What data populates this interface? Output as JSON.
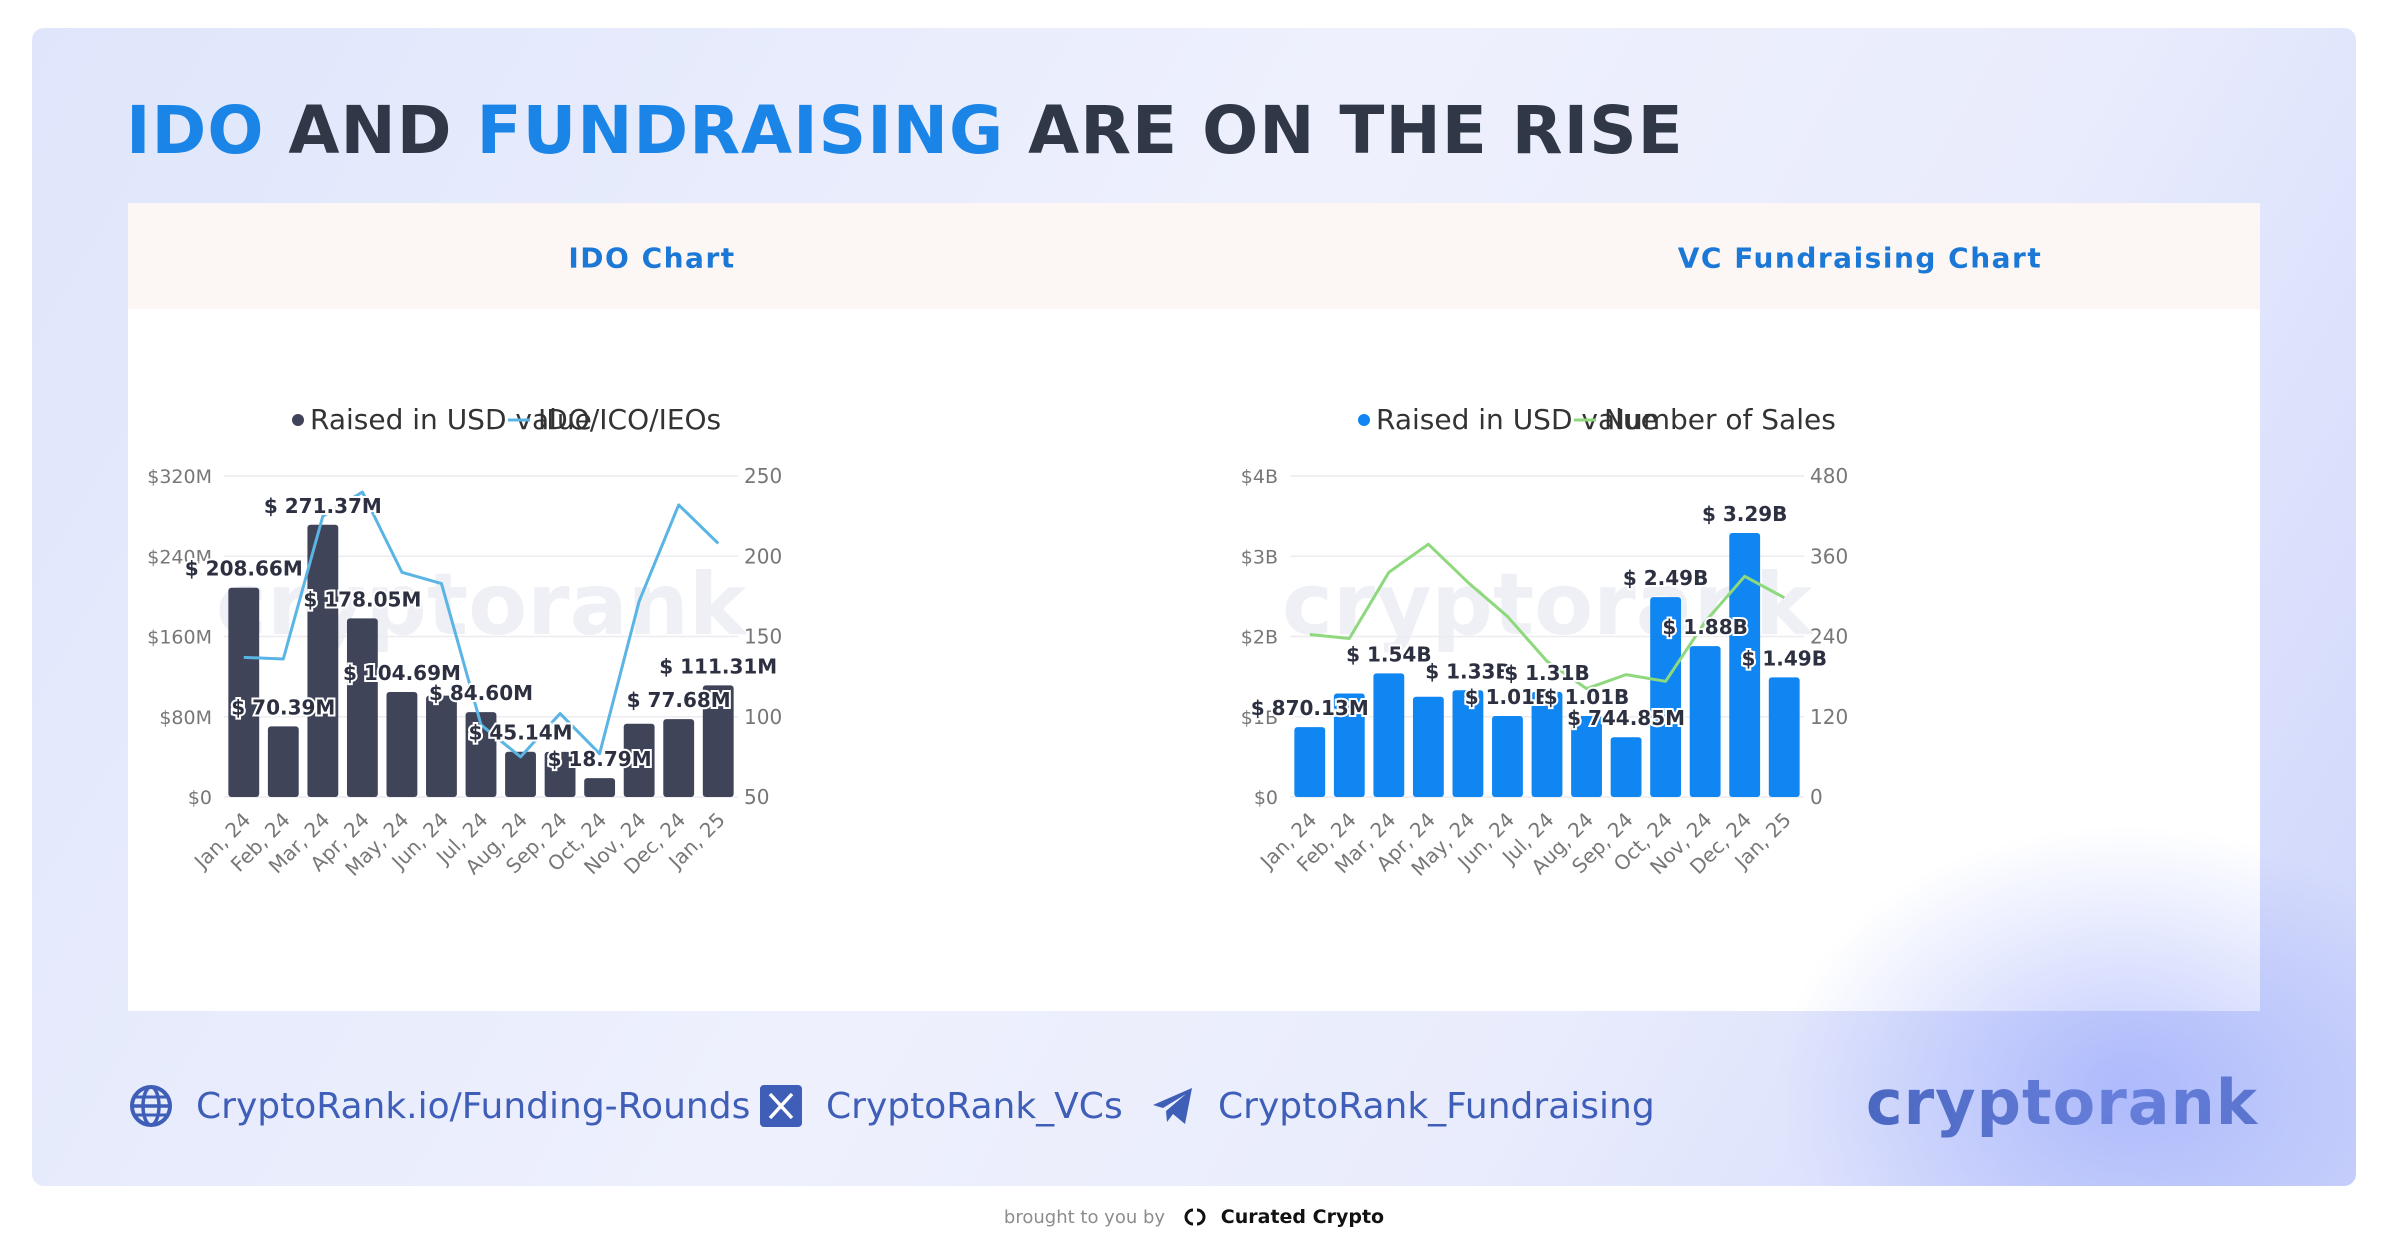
{
  "headline": {
    "part1": "IDO",
    "part2": " AND ",
    "part3": "FUNDRAISING",
    "part4": " ARE ON THE RISE"
  },
  "colors": {
    "accent": "#1b84e7",
    "dark_bar": "#3f4459",
    "blue_bar": "#0f86f2",
    "ido_line": "#5ab4e4",
    "sales_line": "#8ed87e",
    "text": "#303848",
    "link": "#3f5eb8"
  },
  "chart_data": [
    {
      "type": "bar+line",
      "title": "IDO Chart",
      "legend": [
        "Raised in USD value",
        "IDO/ICO/IEOs"
      ],
      "categories": [
        "Jan, 24",
        "Feb, 24",
        "Mar, 24",
        "Apr, 24",
        "May, 24",
        "Jun, 24",
        "Jul, 24",
        "Aug, 24",
        "Sep, 24",
        "Oct, 24",
        "Nov, 24",
        "Dec, 24",
        "Jan, 25"
      ],
      "bar_values": [
        208.66,
        70.39,
        271.37,
        178.05,
        104.69,
        101,
        84.6,
        45.14,
        45,
        18.79,
        73,
        77.68,
        111.31
      ],
      "bar_labels": [
        "$ 208.66M",
        "$ 70.39M",
        "$ 271.37M",
        "$ 178.05M",
        "$ 104.69M",
        "",
        "$ 84.60M",
        "$ 45.14M",
        "",
        "$ 18.79M",
        "",
        "$ 77.68M",
        "$ 111.31M"
      ],
      "line_values": [
        137,
        136,
        225,
        240,
        190,
        183,
        95,
        75,
        102,
        77,
        172,
        232,
        208
      ],
      "y_left_ticks": [
        "$0",
        "$80M",
        "$160M",
        "$240M",
        "$320M"
      ],
      "y_left_range": [
        0,
        320
      ],
      "y_right_ticks": [
        "50",
        "100",
        "150",
        "200",
        "250"
      ],
      "y_right_range": [
        50,
        250
      ],
      "watermark": "cryptorank"
    },
    {
      "type": "bar+line",
      "title": "VC Fundraising Chart",
      "legend": [
        "Raised in USD value",
        "Number of Sales"
      ],
      "categories": [
        "Jan, 24",
        "Feb, 24",
        "Mar, 24",
        "Apr, 24",
        "May, 24",
        "Jun, 24",
        "Jul, 24",
        "Aug, 24",
        "Sep, 24",
        "Oct, 24",
        "Nov, 24",
        "Dec, 24",
        "Jan, 25"
      ],
      "bar_values": [
        0.87013,
        1.29,
        1.54,
        1.25,
        1.33,
        1.01,
        1.31,
        1.01,
        0.74485,
        2.49,
        1.88,
        3.29,
        1.49
      ],
      "bar_labels": [
        "$ 870.13M",
        "",
        "$ 1.54B",
        "",
        "$ 1.33B",
        "$ 1.01B",
        "$ 1.31B",
        "$ 1.01B",
        "$ 744.85M",
        "$ 2.49B",
        "$ 1.88B",
        "$ 3.29B",
        "$ 1.49B"
      ],
      "line_values": [
        243,
        237,
        336,
        378,
        321,
        270,
        203,
        162,
        183,
        173,
        262,
        330,
        298
      ],
      "y_left_ticks": [
        "$0",
        "$1B",
        "$2B",
        "$3B",
        "$4B"
      ],
      "y_left_range": [
        0,
        4
      ],
      "y_right_ticks": [
        "0",
        "120",
        "240",
        "360",
        "480"
      ],
      "y_right_range": [
        0,
        480
      ],
      "watermark": "cryptorank"
    }
  ],
  "links": [
    {
      "label": "CryptoRank.io/Funding-Rounds",
      "icon": "globe-icon"
    },
    {
      "label": "CryptoRank_VCs",
      "icon": "x-icon"
    },
    {
      "label": "CryptoRank_Fundraising",
      "icon": "telegram-icon"
    }
  ],
  "brand": "cryptorank",
  "footer": {
    "prefix": "brought to you by",
    "brand": "Curated Crypto"
  }
}
